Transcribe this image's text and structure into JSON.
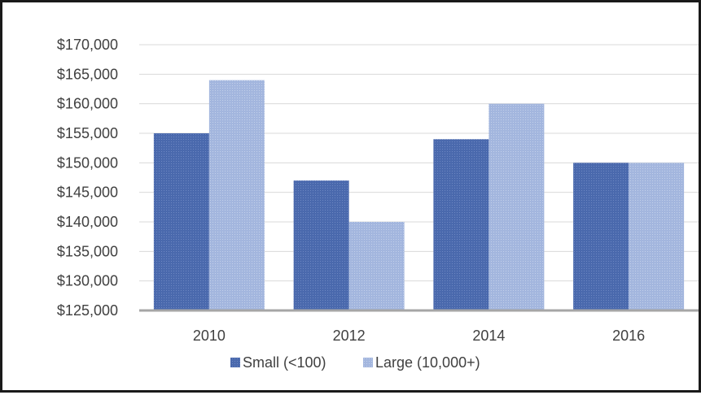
{
  "chart_data": {
    "type": "bar",
    "categories": [
      "2010",
      "2012",
      "2014",
      "2016"
    ],
    "series": [
      {
        "name": "Small (<100)",
        "values": [
          155000,
          147000,
          154000,
          150000
        ],
        "color": "#4a69ad"
      },
      {
        "name": "Large (10,000+)",
        "values": [
          164000,
          140000,
          160000,
          150000
        ],
        "color": "#a3b6de"
      }
    ],
    "ylim": [
      125000,
      170000
    ],
    "yticks": [
      125000,
      130000,
      135000,
      140000,
      145000,
      150000,
      155000,
      160000,
      165000,
      170000
    ],
    "ytick_labels": [
      "$125,000",
      "$130,000",
      "$135,000",
      "$140,000",
      "$145,000",
      "$150,000",
      "$155,000",
      "$160,000",
      "$165,000",
      "$170,000"
    ],
    "grid": true,
    "legend_position": "bottom"
  }
}
